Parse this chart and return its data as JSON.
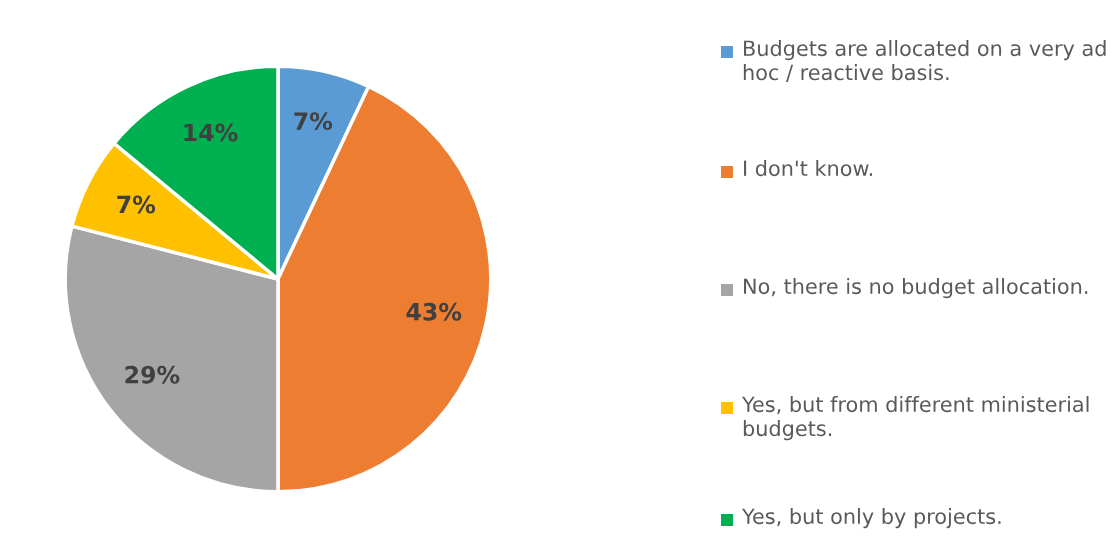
{
  "chart_data": {
    "type": "pie",
    "categories": [
      "Budgets are allocated on a very ad hoc / reactive basis.",
      "I don't know.",
      "No, there is no budget allocation.",
      "Yes, but from different ministerial budgets.",
      "Yes, but only by projects."
    ],
    "values": [
      7,
      43,
      29,
      7,
      14
    ],
    "colors": [
      "#5b9bd5",
      "#ed7d31",
      "#a5a5a5",
      "#ffc000",
      "#00b050"
    ],
    "value_labels": [
      "7%",
      "43%",
      "29%",
      "7%",
      "14%"
    ],
    "legend": "right"
  }
}
